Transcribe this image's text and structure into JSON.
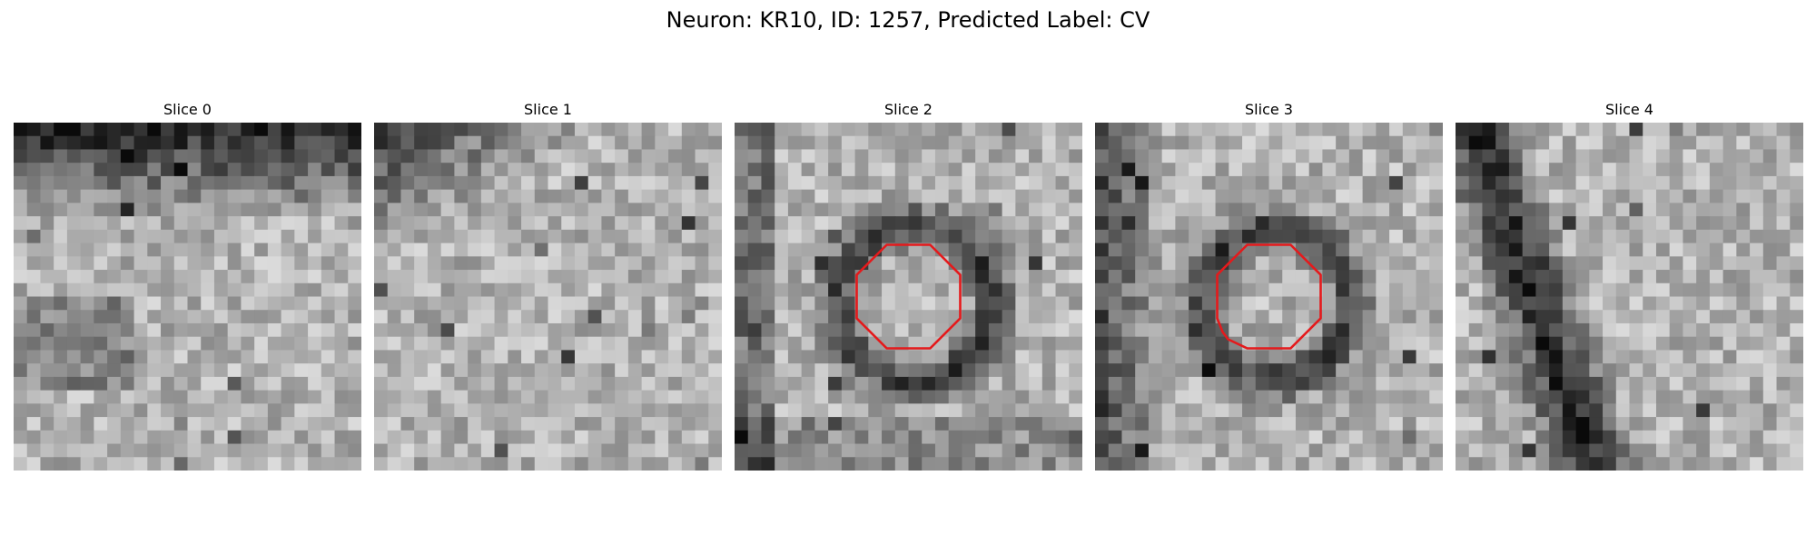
{
  "figure": {
    "title": "Neuron: KR10, ID: 1257, Predicted Label: CV"
  },
  "panels": [
    {
      "title": "Slice 0",
      "dark_band": "top",
      "contour": false,
      "seed": 11
    },
    {
      "title": "Slice 1",
      "dark_band": "top-left",
      "contour": false,
      "seed": 23
    },
    {
      "title": "Slice 2",
      "dark_band": "ring",
      "contour": true,
      "seed": 37
    },
    {
      "title": "Slice 3",
      "dark_band": "ring-left",
      "contour": true,
      "seed": 51
    },
    {
      "title": "Slice 4",
      "dark_band": "left-diagonal",
      "contour": false,
      "seed": 67
    }
  ],
  "contour_color": "#e41a1c",
  "grid_size": 26
}
